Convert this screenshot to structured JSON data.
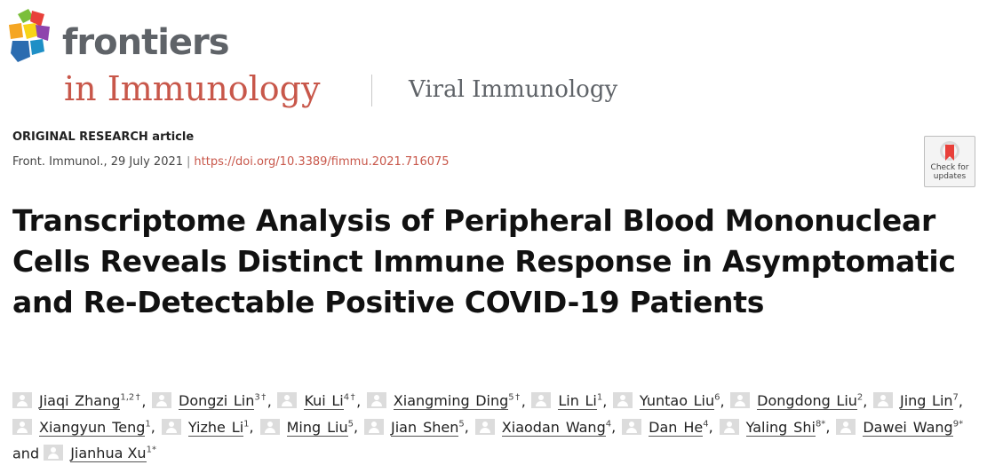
{
  "header": {
    "brand": "frontiers",
    "journal": "in Immunology",
    "section": "Viral Immunology"
  },
  "article": {
    "type": "ORIGINAL RESEARCH article",
    "citation": "Front. Immunol., 29 July 2021",
    "separator": "|",
    "doi": "https://doi.org/10.3389/fimmu.2021.716075",
    "badge_line1": "Check for",
    "badge_line2": "updates",
    "title": "Transcriptome Analysis of Peripheral Blood Mononuclear Cells Reveals Distinct Immune Response in Asymptomatic and Re-Detectable Positive COVID-19 Patients"
  },
  "authors": [
    {
      "name": "Jiaqi Zhang",
      "sup": "1,2†"
    },
    {
      "name": "Dongzi Lin",
      "sup": "3†"
    },
    {
      "name": "Kui Li",
      "sup": "4†"
    },
    {
      "name": "Xiangming Ding",
      "sup": "5†"
    },
    {
      "name": "Lin Li",
      "sup": "1"
    },
    {
      "name": "Yuntao Liu",
      "sup": "6"
    },
    {
      "name": "Dongdong Liu",
      "sup": "2"
    },
    {
      "name": "Jing Lin",
      "sup": "7"
    },
    {
      "name": "Xiangyun Teng",
      "sup": "1"
    },
    {
      "name": "Yizhe Li",
      "sup": "1"
    },
    {
      "name": "Ming Liu",
      "sup": "5"
    },
    {
      "name": "Jian Shen",
      "sup": "5"
    },
    {
      "name": "Xiaodan Wang",
      "sup": "4"
    },
    {
      "name": "Dan He",
      "sup": "4"
    },
    {
      "name": "Yaling Shi",
      "sup": "8*"
    },
    {
      "name": "Dawei Wang",
      "sup": "9*"
    },
    {
      "name": "Jianhua Xu",
      "sup": "1*"
    }
  ],
  "authors_and": "and",
  "colors": {
    "accent": "#c8574a",
    "logo_orange": "#f5a623",
    "logo_green": "#7bbf3a",
    "logo_red": "#e8403a",
    "logo_blue": "#2b6cb0",
    "logo_purple": "#8e44ad",
    "logo_yellow": "#f7d417"
  }
}
